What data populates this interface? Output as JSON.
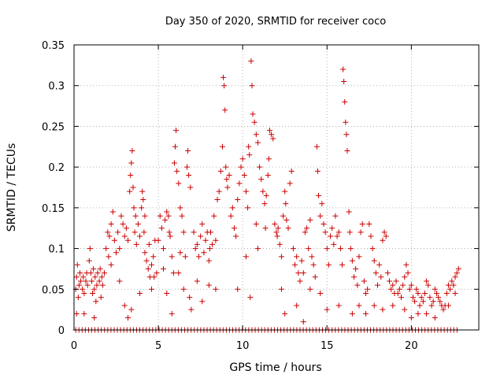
{
  "chart_data": {
    "type": "scatter",
    "title": "Day 350 of 2020, SRMTID for receiver coco",
    "xlabel": "GPS time / hours",
    "ylabel": "SRMTID / TECUs",
    "xlim": [
      0,
      24
    ],
    "ylim": [
      0,
      0.35
    ],
    "x_ticks": [
      0,
      5,
      10,
      15,
      20
    ],
    "x_tick_labels": [
      "0",
      "5",
      "10",
      "15",
      "20"
    ],
    "y_ticks": [
      0,
      0.05,
      0.1,
      0.15,
      0.2,
      0.25,
      0.3,
      0.35
    ],
    "y_tick_labels": [
      "0",
      "0.05",
      "0.1",
      "0.15",
      "0.2",
      "0.25",
      "0.3",
      "0.35"
    ],
    "grid": true,
    "marker": "+",
    "color": "#cc0000",
    "series": [
      {
        "name": "SRMTID",
        "points": [
          [
            0.1,
            0.05
          ],
          [
            0.15,
            0.065
          ],
          [
            0.2,
            0.08
          ],
          [
            0.25,
            0.04
          ],
          [
            0.3,
            0.055
          ],
          [
            0.35,
            0.07
          ],
          [
            0.4,
            0.06
          ],
          [
            0.5,
            0.05
          ],
          [
            0.55,
            0.065
          ],
          [
            0.6,
            0.045
          ],
          [
            0.7,
            0.06
          ],
          [
            0.75,
            0.07
          ],
          [
            0.8,
            0.055
          ],
          [
            0.9,
            0.085
          ],
          [
            0.95,
            0.1
          ],
          [
            1.0,
            0.07
          ],
          [
            1.05,
            0.06
          ],
          [
            1.1,
            0.045
          ],
          [
            1.15,
            0.075
          ],
          [
            1.2,
            0.05
          ],
          [
            1.25,
            0.065
          ],
          [
            1.3,
            0.035
          ],
          [
            1.35,
            0.055
          ],
          [
            1.4,
            0.07
          ],
          [
            1.5,
            0.06
          ],
          [
            1.55,
            0.075
          ],
          [
            1.6,
            0.04
          ],
          [
            1.65,
            0.065
          ],
          [
            1.7,
            0.055
          ],
          [
            1.8,
            0.07
          ],
          [
            0.15,
            0.02
          ],
          [
            0.6,
            0.02
          ],
          [
            1.2,
            0.015
          ],
          [
            1.9,
            0.1
          ],
          [
            2.0,
            0.12
          ],
          [
            2.05,
            0.09
          ],
          [
            2.1,
            0.115
          ],
          [
            2.2,
            0.13
          ],
          [
            2.3,
            0.145
          ],
          [
            2.4,
            0.11
          ],
          [
            2.5,
            0.095
          ],
          [
            2.6,
            0.12
          ],
          [
            2.7,
            0.1
          ],
          [
            2.8,
            0.14
          ],
          [
            2.9,
            0.13
          ],
          [
            3.0,
            0.115
          ],
          [
            3.1,
            0.125
          ],
          [
            3.2,
            0.11
          ],
          [
            2.2,
            0.08
          ],
          [
            2.7,
            0.06
          ],
          [
            3.0,
            0.03
          ],
          [
            3.2,
            0.015
          ],
          [
            3.3,
            0.17
          ],
          [
            3.35,
            0.19
          ],
          [
            3.4,
            0.205
          ],
          [
            3.45,
            0.22
          ],
          [
            3.5,
            0.175
          ],
          [
            3.55,
            0.15
          ],
          [
            3.6,
            0.12
          ],
          [
            3.65,
            0.14
          ],
          [
            3.7,
            0.105
          ],
          [
            3.8,
            0.13
          ],
          [
            3.9,
            0.115
          ],
          [
            4.0,
            0.15
          ],
          [
            4.05,
            0.17
          ],
          [
            4.1,
            0.16
          ],
          [
            4.15,
            0.12
          ],
          [
            4.2,
            0.095
          ],
          [
            4.3,
            0.085
          ],
          [
            4.4,
            0.075
          ],
          [
            4.5,
            0.065
          ],
          [
            4.6,
            0.08
          ],
          [
            4.7,
            0.09
          ],
          [
            4.75,
            0.065
          ],
          [
            4.8,
            0.11
          ],
          [
            3.4,
            0.025
          ],
          [
            3.9,
            0.045
          ],
          [
            4.2,
            0.14
          ],
          [
            4.45,
            0.105
          ],
          [
            4.6,
            0.05
          ],
          [
            4.9,
            0.07
          ],
          [
            5.0,
            0.11
          ],
          [
            5.1,
            0.14
          ],
          [
            5.2,
            0.125
          ],
          [
            5.3,
            0.1
          ],
          [
            5.4,
            0.135
          ],
          [
            5.5,
            0.145
          ],
          [
            5.6,
            0.14
          ],
          [
            5.65,
            0.12
          ],
          [
            5.7,
            0.115
          ],
          [
            5.8,
            0.09
          ],
          [
            5.9,
            0.07
          ],
          [
            5.95,
            0.205
          ],
          [
            6.0,
            0.225
          ],
          [
            6.05,
            0.245
          ],
          [
            6.1,
            0.195
          ],
          [
            6.2,
            0.18
          ],
          [
            6.3,
            0.15
          ],
          [
            6.4,
            0.14
          ],
          [
            6.5,
            0.12
          ],
          [
            6.6,
            0.09
          ],
          [
            6.7,
            0.2
          ],
          [
            6.75,
            0.22
          ],
          [
            6.8,
            0.19
          ],
          [
            6.9,
            0.175
          ],
          [
            5.3,
            0.075
          ],
          [
            5.5,
            0.045
          ],
          [
            5.8,
            0.02
          ],
          [
            6.2,
            0.07
          ],
          [
            6.5,
            0.05
          ],
          [
            6.3,
            0.095
          ],
          [
            6.85,
            0.04
          ],
          [
            6.95,
            0.025
          ],
          [
            7.1,
            0.12
          ],
          [
            7.2,
            0.1
          ],
          [
            7.3,
            0.105
          ],
          [
            7.4,
            0.09
          ],
          [
            7.5,
            0.115
          ],
          [
            7.6,
            0.13
          ],
          [
            7.7,
            0.095
          ],
          [
            7.8,
            0.11
          ],
          [
            7.9,
            0.12
          ],
          [
            8.0,
            0.085
          ],
          [
            8.05,
            0.1
          ],
          [
            8.1,
            0.12
          ],
          [
            8.2,
            0.105
          ],
          [
            8.3,
            0.14
          ],
          [
            8.4,
            0.11
          ],
          [
            8.5,
            0.16
          ],
          [
            8.6,
            0.17
          ],
          [
            8.7,
            0.195
          ],
          [
            8.8,
            0.225
          ],
          [
            7.3,
            0.06
          ],
          [
            7.6,
            0.035
          ],
          [
            8.0,
            0.055
          ],
          [
            8.4,
            0.05
          ],
          [
            8.85,
            0.31
          ],
          [
            8.9,
            0.3
          ],
          [
            8.95,
            0.27
          ],
          [
            9.0,
            0.2
          ],
          [
            9.05,
            0.185
          ],
          [
            9.1,
            0.175
          ],
          [
            9.2,
            0.19
          ],
          [
            9.3,
            0.14
          ],
          [
            9.4,
            0.15
          ],
          [
            9.5,
            0.125
          ],
          [
            9.6,
            0.115
          ],
          [
            9.7,
            0.16
          ],
          [
            9.8,
            0.18
          ],
          [
            9.9,
            0.2
          ],
          [
            10.0,
            0.21
          ],
          [
            10.1,
            0.19
          ],
          [
            10.2,
            0.17
          ],
          [
            10.3,
            0.15
          ],
          [
            10.35,
            0.225
          ],
          [
            10.4,
            0.215
          ],
          [
            10.5,
            0.33
          ],
          [
            10.55,
            0.3
          ],
          [
            10.6,
            0.265
          ],
          [
            10.7,
            0.255
          ],
          [
            10.8,
            0.24
          ],
          [
            10.9,
            0.23
          ],
          [
            11.0,
            0.2
          ],
          [
            11.1,
            0.185
          ],
          [
            11.2,
            0.17
          ],
          [
            11.3,
            0.155
          ],
          [
            11.4,
            0.165
          ],
          [
            11.5,
            0.19
          ],
          [
            11.55,
            0.21
          ],
          [
            11.6,
            0.245
          ],
          [
            11.7,
            0.24
          ],
          [
            11.8,
            0.235
          ],
          [
            9.7,
            0.05
          ],
          [
            10.2,
            0.09
          ],
          [
            10.45,
            0.04
          ],
          [
            10.8,
            0.13
          ],
          [
            10.9,
            0.1
          ],
          [
            11.35,
            0.125
          ],
          [
            11.9,
            0.13
          ],
          [
            12.0,
            0.12
          ],
          [
            12.05,
            0.115
          ],
          [
            12.1,
            0.125
          ],
          [
            12.2,
            0.105
          ],
          [
            12.3,
            0.09
          ],
          [
            12.4,
            0.14
          ],
          [
            12.5,
            0.17
          ],
          [
            12.55,
            0.155
          ],
          [
            12.6,
            0.135
          ],
          [
            12.7,
            0.125
          ],
          [
            12.8,
            0.18
          ],
          [
            12.9,
            0.195
          ],
          [
            13.0,
            0.1
          ],
          [
            13.1,
            0.08
          ],
          [
            13.2,
            0.09
          ],
          [
            13.3,
            0.07
          ],
          [
            13.4,
            0.06
          ],
          [
            13.5,
            0.085
          ],
          [
            13.6,
            0.07
          ],
          [
            13.7,
            0.12
          ],
          [
            13.8,
            0.125
          ],
          [
            13.9,
            0.1
          ],
          [
            14.0,
            0.135
          ],
          [
            14.1,
            0.09
          ],
          [
            14.2,
            0.08
          ],
          [
            14.3,
            0.065
          ],
          [
            14.4,
            0.225
          ],
          [
            14.45,
            0.195
          ],
          [
            14.5,
            0.165
          ],
          [
            14.6,
            0.14
          ],
          [
            14.7,
            0.155
          ],
          [
            14.8,
            0.13
          ],
          [
            14.9,
            0.12
          ],
          [
            15.0,
            0.1
          ],
          [
            15.1,
            0.08
          ],
          [
            15.2,
            0.115
          ],
          [
            15.3,
            0.125
          ],
          [
            15.4,
            0.105
          ],
          [
            12.3,
            0.05
          ],
          [
            12.5,
            0.02
          ],
          [
            13.2,
            0.03
          ],
          [
            13.6,
            0.01
          ],
          [
            14.0,
            0.05
          ],
          [
            14.6,
            0.045
          ],
          [
            15.0,
            0.025
          ],
          [
            15.5,
            0.14
          ],
          [
            15.6,
            0.115
          ],
          [
            15.7,
            0.12
          ],
          [
            15.8,
            0.1
          ],
          [
            15.9,
            0.08
          ],
          [
            15.95,
            0.32
          ],
          [
            16.0,
            0.305
          ],
          [
            16.05,
            0.28
          ],
          [
            16.1,
            0.255
          ],
          [
            16.15,
            0.24
          ],
          [
            16.2,
            0.22
          ],
          [
            16.3,
            0.145
          ],
          [
            16.35,
            0.12
          ],
          [
            16.4,
            0.1
          ],
          [
            16.5,
            0.085
          ],
          [
            16.6,
            0.065
          ],
          [
            16.7,
            0.075
          ],
          [
            16.8,
            0.055
          ],
          [
            16.9,
            0.09
          ],
          [
            17.0,
            0.12
          ],
          [
            17.1,
            0.13
          ],
          [
            17.2,
            0.06
          ],
          [
            17.3,
            0.045
          ],
          [
            17.4,
            0.05
          ],
          [
            17.5,
            0.13
          ],
          [
            17.6,
            0.115
          ],
          [
            17.7,
            0.1
          ],
          [
            17.8,
            0.085
          ],
          [
            17.9,
            0.07
          ],
          [
            18.0,
            0.055
          ],
          [
            18.1,
            0.08
          ],
          [
            18.2,
            0.065
          ],
          [
            18.3,
            0.11
          ],
          [
            18.4,
            0.12
          ],
          [
            18.5,
            0.115
          ],
          [
            18.6,
            0.07
          ],
          [
            18.7,
            0.06
          ],
          [
            18.8,
            0.05
          ],
          [
            18.9,
            0.055
          ],
          [
            19.0,
            0.045
          ],
          [
            15.7,
            0.03
          ],
          [
            16.5,
            0.02
          ],
          [
            16.9,
            0.03
          ],
          [
            17.3,
            0.02
          ],
          [
            17.8,
            0.03
          ],
          [
            18.3,
            0.025
          ],
          [
            18.9,
            0.03
          ],
          [
            19.1,
            0.06
          ],
          [
            19.2,
            0.045
          ],
          [
            19.3,
            0.05
          ],
          [
            19.4,
            0.04
          ],
          [
            19.5,
            0.055
          ],
          [
            19.6,
            0.065
          ],
          [
            19.7,
            0.08
          ],
          [
            19.8,
            0.07
          ],
          [
            19.9,
            0.05
          ],
          [
            20.0,
            0.055
          ],
          [
            20.1,
            0.04
          ],
          [
            20.2,
            0.035
          ],
          [
            20.3,
            0.05
          ],
          [
            20.4,
            0.045
          ],
          [
            20.5,
            0.03
          ],
          [
            20.6,
            0.04
          ],
          [
            20.7,
            0.035
          ],
          [
            20.8,
            0.045
          ],
          [
            20.9,
            0.06
          ],
          [
            21.0,
            0.055
          ],
          [
            21.1,
            0.04
          ],
          [
            21.2,
            0.03
          ],
          [
            21.3,
            0.035
          ],
          [
            21.4,
            0.05
          ],
          [
            21.5,
            0.045
          ],
          [
            21.6,
            0.04
          ],
          [
            21.7,
            0.035
          ],
          [
            21.8,
            0.03
          ],
          [
            21.9,
            0.025
          ],
          [
            22.0,
            0.03
          ],
          [
            22.1,
            0.045
          ],
          [
            22.2,
            0.055
          ],
          [
            22.3,
            0.05
          ],
          [
            22.4,
            0.06
          ],
          [
            22.5,
            0.055
          ],
          [
            22.6,
            0.065
          ],
          [
            22.7,
            0.07
          ],
          [
            22.8,
            0.075
          ],
          [
            19.6,
            0.025
          ],
          [
            20.0,
            0.015
          ],
          [
            20.4,
            0.02
          ],
          [
            20.9,
            0.02
          ],
          [
            21.4,
            0.015
          ],
          [
            22.2,
            0.03
          ],
          [
            22.6,
            0.045
          ]
        ]
      }
    ],
    "zero_line": {
      "x_start": 0.1,
      "x_end": 22.8,
      "step": 0.19,
      "y": 0
    }
  }
}
